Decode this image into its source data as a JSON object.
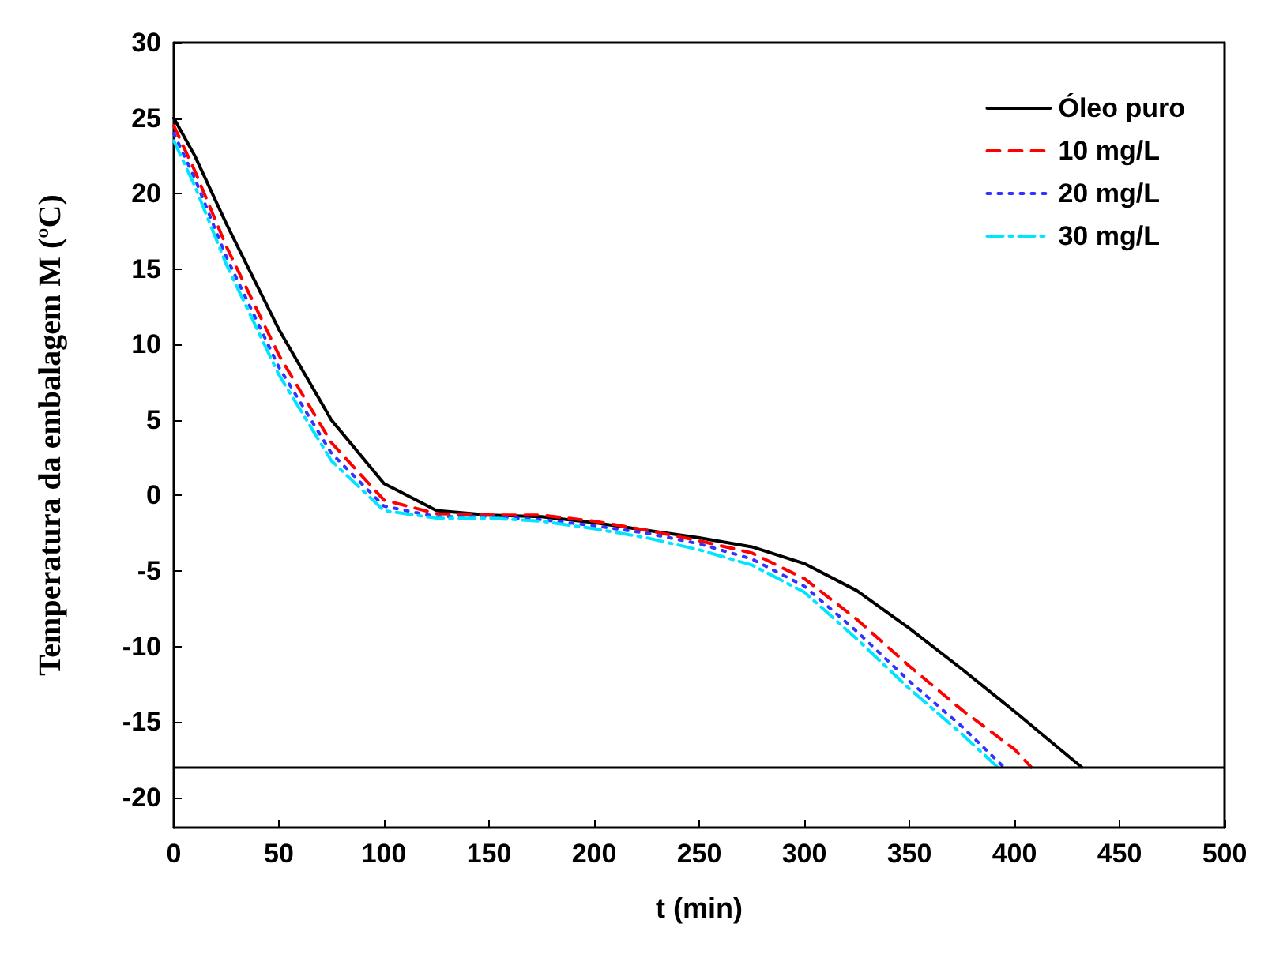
{
  "chart_data": {
    "type": "line",
    "xlabel": "t (min)",
    "ylabel": "Temperatura da embalagem M (ºC)",
    "xlim": [
      0,
      500
    ],
    "xticks": [
      0,
      50,
      100,
      150,
      200,
      250,
      300,
      350,
      400,
      450,
      500
    ],
    "ylim": [
      -22,
      30
    ],
    "yticks": [
      -20,
      -15,
      -10,
      -5,
      0,
      5,
      10,
      15,
      20,
      25,
      30
    ],
    "grid": false,
    "legend": "top right",
    "marker": "none",
    "series": [
      {
        "name": "Óleo puro",
        "color": "#000000",
        "line_style": "solid",
        "x": [
          0,
          10,
          25,
          50,
          75,
          100,
          125,
          150,
          175,
          200,
          225,
          250,
          275,
          300,
          325,
          350,
          375,
          400,
          432
        ],
        "values": [
          25,
          22.5,
          18,
          11,
          5,
          0.8,
          -1,
          -1.3,
          -1.4,
          -1.8,
          -2.3,
          -2.8,
          -3.4,
          -4.5,
          -6.3,
          -8.8,
          -11.5,
          -14.3,
          -18
        ]
      },
      {
        "name": "10 mg/L",
        "color": "#ff0000",
        "line_style": "dashed",
        "x": [
          0,
          10,
          25,
          50,
          75,
          100,
          125,
          150,
          175,
          200,
          225,
          250,
          275,
          300,
          325,
          350,
          375,
          400,
          408
        ],
        "values": [
          24.5,
          21.5,
          16.5,
          9.3,
          3.5,
          -0.3,
          -1.2,
          -1.3,
          -1.3,
          -1.7,
          -2.3,
          -3,
          -3.8,
          -5.5,
          -8.2,
          -11.3,
          -14.2,
          -16.8,
          -18
        ]
      },
      {
        "name": "20 mg/L",
        "color": "#3333ff",
        "line_style": "dotted",
        "x": [
          0,
          10,
          25,
          50,
          75,
          100,
          125,
          150,
          175,
          200,
          225,
          250,
          275,
          300,
          325,
          350,
          375,
          395
        ],
        "values": [
          24,
          21,
          15.8,
          8.5,
          2.8,
          -0.7,
          -1.4,
          -1.4,
          -1.6,
          -2,
          -2.5,
          -3.2,
          -4.2,
          -6,
          -9,
          -12.3,
          -15.3,
          -18
        ]
      },
      {
        "name": "30 mg/L",
        "color": "#00e5ff",
        "line_style": "dashdot",
        "x": [
          0,
          10,
          25,
          50,
          75,
          100,
          125,
          150,
          175,
          200,
          225,
          250,
          275,
          300,
          325,
          350,
          375,
          392
        ],
        "values": [
          23.5,
          20.5,
          15.3,
          8,
          2.3,
          -1,
          -1.5,
          -1.5,
          -1.7,
          -2.2,
          -2.8,
          -3.6,
          -4.6,
          -6.4,
          -9.5,
          -12.8,
          -15.8,
          -18
        ]
      }
    ],
    "ref_lines": [
      {
        "axis": "y",
        "value": -18,
        "color": "#000000",
        "line_style": "solid"
      }
    ]
  }
}
